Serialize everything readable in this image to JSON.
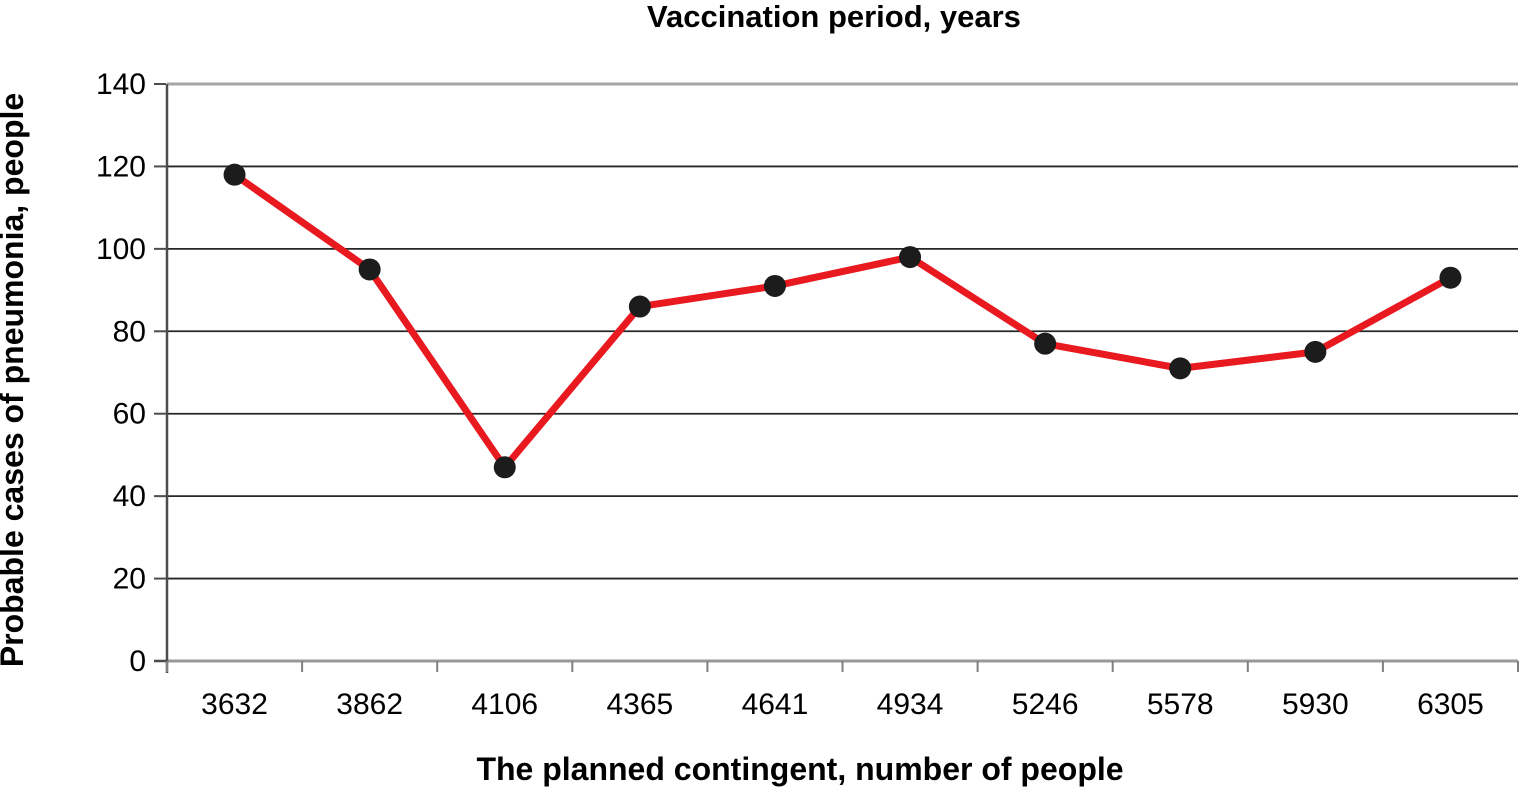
{
  "chart_data": {
    "type": "line",
    "title": "Vaccination period, years",
    "xlabel": "The planned contingent, number of people",
    "ylabel": "Probable cases of pneumonia, people",
    "categories": [
      "3632",
      "3862",
      "4106",
      "4365",
      "4641",
      "4934",
      "5246",
      "5578",
      "5930",
      "6305"
    ],
    "series": [
      {
        "name": "Probable cases of pneumonia",
        "values": [
          118,
          95,
          47,
          86,
          91,
          98,
          77,
          71,
          75,
          93
        ]
      }
    ],
    "ylim": [
      0,
      140
    ],
    "yticks": [
      0,
      20,
      40,
      60,
      80,
      100,
      120,
      140
    ],
    "grid": "horizontal-major",
    "legend": "none",
    "line_color": "#e8191f",
    "marker_color": "#1c1c1c"
  }
}
